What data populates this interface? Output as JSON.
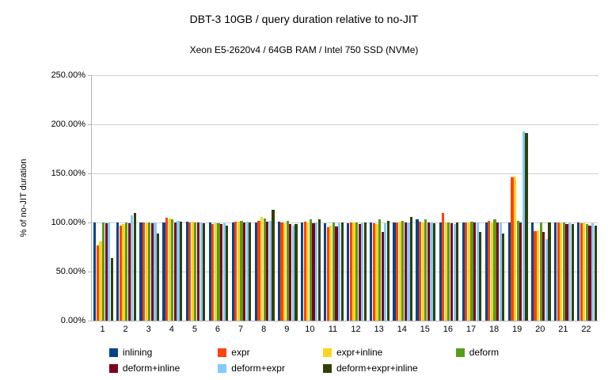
{
  "chart_data": {
    "type": "bar",
    "title": "DBT-3 10GB / query duration relative to no-JIT",
    "subtitle": "Xeon E5-2620v4 / 64GB RAM / Intel 750 SSD (NVMe)",
    "ylabel": "% of no-JIT duration",
    "ylim": [
      0,
      250
    ],
    "grid": true,
    "legend_position": "bottom",
    "yticks": [
      "0.00%",
      "50.00%",
      "100.00%",
      "150.00%",
      "200.00%",
      "250.00%"
    ],
    "categories": [
      "1",
      "2",
      "3",
      "4",
      "5",
      "6",
      "7",
      "8",
      "9",
      "10",
      "11",
      "12",
      "13",
      "14",
      "15",
      "16",
      "17",
      "18",
      "19",
      "20",
      "21",
      "22"
    ],
    "series": [
      {
        "name": "inlining",
        "color": "#004586",
        "values": [
          100,
          100,
          100,
          100,
          101,
          100,
          100,
          100,
          101,
          100,
          99,
          99,
          100,
          100,
          103,
          100,
          100,
          100,
          100,
          100,
          100,
          100
        ]
      },
      {
        "name": "expr",
        "color": "#ff420e",
        "values": [
          77,
          97,
          100,
          105,
          100,
          98,
          101,
          102,
          100,
          101,
          95,
          100,
          99,
          100,
          101,
          110,
          100,
          102,
          146,
          91,
          100,
          99
        ]
      },
      {
        "name": "expr+inline",
        "color": "#ffd320",
        "values": [
          81,
          98,
          99,
          104,
          101,
          99,
          101,
          106,
          99,
          100,
          97,
          100,
          98,
          101,
          100,
          100,
          100,
          100,
          147,
          92,
          99,
          100
        ]
      },
      {
        "name": "deform",
        "color": "#579d1c",
        "values": [
          100,
          100,
          100,
          103,
          100,
          99,
          102,
          104,
          102,
          103,
          100,
          100,
          103,
          102,
          103,
          100,
          101,
          103,
          102,
          100,
          100,
          98
        ]
      },
      {
        "name": "deform+inline",
        "color": "#7e0021",
        "values": [
          99,
          99,
          99,
          100,
          100,
          98,
          100,
          101,
          98,
          99,
          96,
          98,
          90,
          100,
          100,
          99,
          100,
          100,
          100,
          90,
          98,
          97
        ]
      },
      {
        "name": "deform+expr",
        "color": "#83caff",
        "values": [
          100,
          107,
          100,
          102,
          100,
          99,
          101,
          102,
          97,
          100,
          99,
          99,
          99,
          100,
          100,
          98,
          100,
          100,
          193,
          83,
          99,
          99
        ]
      },
      {
        "name": "deform+expr+inline",
        "color": "#314004",
        "values": [
          64,
          110,
          89,
          101,
          99,
          97,
          100,
          113,
          98,
          103,
          100,
          100,
          102,
          106,
          99,
          100,
          90,
          89,
          191,
          100,
          98,
          97
        ]
      }
    ]
  }
}
